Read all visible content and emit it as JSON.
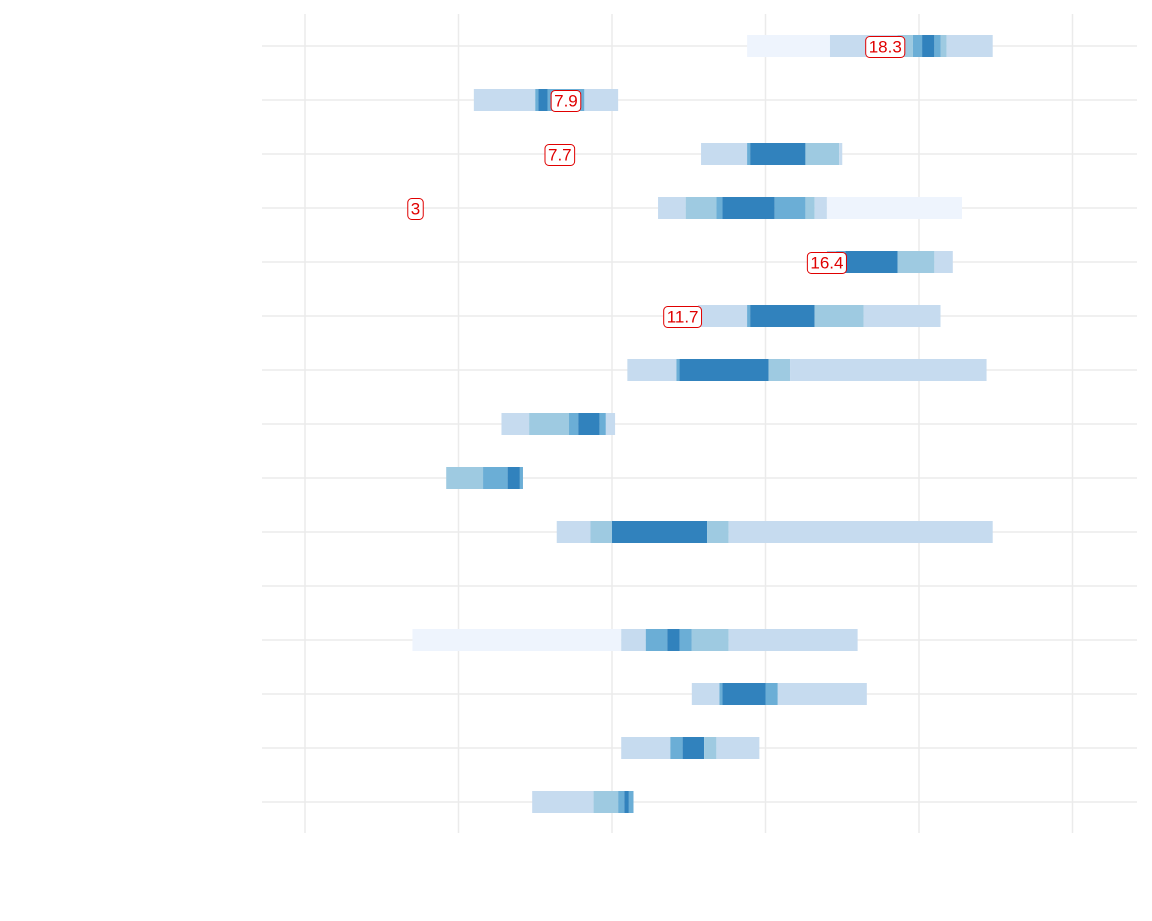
{
  "chart_data": {
    "type": "bar",
    "subtype": "stacked-interval-bands",
    "title": "",
    "xlabel": "",
    "ylabel": "",
    "grid": true,
    "legend": "none",
    "xlim": [
      -2,
      26.5
    ],
    "x_gridlines": [
      -0.6,
      4.4,
      9.4,
      14.4,
      19.4,
      24.4
    ],
    "band_colors": [
      "#eef4fd",
      "#c6dbef",
      "#9ecae1",
      "#6baed6",
      "#3182bd"
    ],
    "label_color": "#e00000",
    "rows": [
      {
        "segments": [
          [
            13.8,
            16.5,
            0
          ],
          [
            16.5,
            18.7,
            1
          ],
          [
            18.7,
            19.2,
            2
          ],
          [
            19.2,
            19.5,
            3
          ],
          [
            19.5,
            19.9,
            4
          ],
          [
            19.9,
            20.1,
            3
          ],
          [
            20.1,
            20.3,
            2
          ],
          [
            20.3,
            21.8,
            1
          ]
        ],
        "label": "18.3",
        "label_x": 18.3
      },
      {
        "segments": [
          [
            4.9,
            6.9,
            1
          ],
          [
            6.9,
            7.0,
            3
          ],
          [
            7.0,
            7.3,
            4
          ],
          [
            7.3,
            8.5,
            3
          ],
          [
            8.5,
            9.6,
            1
          ]
        ],
        "label": "7.9",
        "label_x": 7.9
      },
      {
        "segments": [
          [
            12.3,
            13.8,
            1
          ],
          [
            13.8,
            13.9,
            3
          ],
          [
            13.9,
            15.7,
            4
          ],
          [
            15.7,
            16.8,
            2
          ],
          [
            16.8,
            16.9,
            1
          ]
        ],
        "label": "7.7",
        "label_x": 7.7
      },
      {
        "segments": [
          [
            10.9,
            11.8,
            1
          ],
          [
            11.8,
            12.8,
            2
          ],
          [
            12.8,
            13.0,
            3
          ],
          [
            13.0,
            14.7,
            4
          ],
          [
            14.7,
            15.7,
            3
          ],
          [
            15.7,
            16.0,
            2
          ],
          [
            16.0,
            16.4,
            1
          ],
          [
            16.4,
            20.8,
            0
          ]
        ],
        "label": "3",
        "label_x": 3
      },
      {
        "segments": [
          [
            16.4,
            16.7,
            2
          ],
          [
            16.7,
            17.0,
            3
          ],
          [
            17.0,
            18.7,
            4
          ],
          [
            18.7,
            19.9,
            2
          ],
          [
            19.9,
            20.5,
            1
          ]
        ],
        "label": "16.4",
        "label_x": 16.4
      },
      {
        "segments": [
          [
            12.2,
            13.8,
            1
          ],
          [
            13.8,
            13.9,
            3
          ],
          [
            13.9,
            16.0,
            4
          ],
          [
            16.0,
            17.6,
            2
          ],
          [
            17.6,
            20.1,
            1
          ]
        ],
        "label": "11.7",
        "label_x": 11.7
      },
      {
        "segments": [
          [
            9.9,
            11.5,
            1
          ],
          [
            11.5,
            11.6,
            3
          ],
          [
            11.6,
            14.5,
            4
          ],
          [
            14.5,
            15.2,
            2
          ],
          [
            15.2,
            21.6,
            1
          ]
        ]
      },
      {
        "segments": [
          [
            5.8,
            6.7,
            1
          ],
          [
            6.7,
            8.0,
            2
          ],
          [
            8.0,
            8.3,
            3
          ],
          [
            8.3,
            9.0,
            4
          ],
          [
            9.0,
            9.2,
            3
          ],
          [
            9.2,
            9.5,
            1
          ]
        ]
      },
      {
        "segments": [
          [
            4.0,
            5.2,
            2
          ],
          [
            5.2,
            6.0,
            3
          ],
          [
            6.0,
            6.4,
            4
          ],
          [
            6.4,
            6.5,
            3
          ]
        ]
      },
      {
        "segments": [
          [
            7.6,
            8.7,
            1
          ],
          [
            8.7,
            9.4,
            2
          ],
          [
            9.4,
            12.5,
            4
          ],
          [
            12.5,
            13.2,
            2
          ],
          [
            13.2,
            21.8,
            1
          ]
        ]
      },
      {
        "segments": []
      },
      {
        "segments": [
          [
            2.9,
            9.7,
            0
          ],
          [
            9.7,
            10.5,
            1
          ],
          [
            10.5,
            11.2,
            3
          ],
          [
            11.2,
            11.6,
            4
          ],
          [
            11.6,
            12.0,
            3
          ],
          [
            12.0,
            13.2,
            2
          ],
          [
            13.2,
            17.4,
            1
          ]
        ]
      },
      {
        "segments": [
          [
            12.0,
            12.9,
            1
          ],
          [
            12.9,
            13.0,
            3
          ],
          [
            13.0,
            14.4,
            4
          ],
          [
            14.4,
            14.8,
            3
          ],
          [
            14.8,
            17.7,
            1
          ]
        ]
      },
      {
        "segments": [
          [
            9.7,
            11.3,
            1
          ],
          [
            11.3,
            11.7,
            3
          ],
          [
            11.7,
            12.4,
            4
          ],
          [
            12.4,
            12.8,
            2
          ],
          [
            12.8,
            14.2,
            1
          ]
        ]
      },
      {
        "segments": [
          [
            6.8,
            8.8,
            1
          ],
          [
            8.8,
            9.6,
            2
          ],
          [
            9.6,
            9.8,
            3
          ],
          [
            9.8,
            9.95,
            4
          ],
          [
            9.95,
            10.1,
            3
          ]
        ]
      }
    ]
  }
}
